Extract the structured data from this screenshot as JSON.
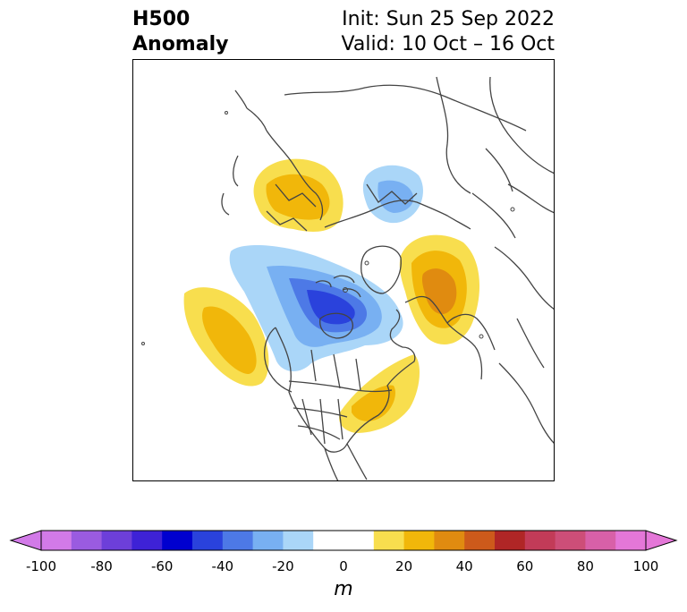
{
  "header": {
    "title_line1": "H500",
    "title_line2": "Anomaly",
    "init_text": "Init: Sun 25 Sep 2022",
    "valid_text": "Valid: 10 Oct – 16 Oct"
  },
  "colorbar": {
    "units_label": "m",
    "ticks": [
      "-100",
      "-80",
      "-60",
      "-40",
      "-20",
      "0",
      "20",
      "40",
      "60",
      "80",
      "100"
    ],
    "colors": [
      "#d27ae8",
      "#9a5be0",
      "#6d3fd9",
      "#3e22d6",
      "#0000cf",
      "#2a42dc",
      "#4d79e6",
      "#78b0f2",
      "#aad6f8",
      "#ffffff",
      "#ffffff",
      "#f8de4e",
      "#f1b70a",
      "#e08b10",
      "#cd5a1b",
      "#b02626",
      "#c23b58",
      "#cd4e78",
      "#d860a8",
      "#e477d8"
    ],
    "over_color": "#e477d8",
    "under_color": "#d27ae8"
  },
  "map": {
    "projection": "north-polar-stereographic",
    "region": "Northern Hemisphere"
  }
}
